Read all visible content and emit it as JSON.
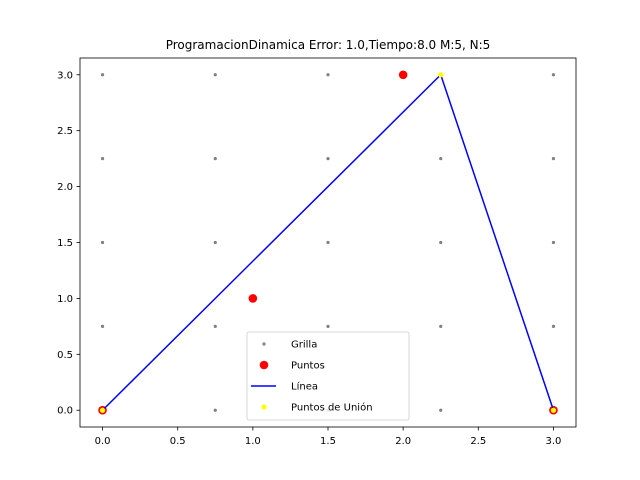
{
  "chart_data": {
    "type": "scatter",
    "title": "ProgramacionDinamica Error: 1.0,Tiempo:8.0  M:5, N:5",
    "xlabel": "",
    "ylabel": "",
    "xlim": [
      -0.15,
      3.15
    ],
    "ylim": [
      -0.15,
      3.15
    ],
    "x_ticks": [
      0.0,
      0.5,
      1.0,
      1.5,
      2.0,
      2.5,
      3.0
    ],
    "y_ticks": [
      0.0,
      0.5,
      1.0,
      1.5,
      2.0,
      2.5,
      3.0
    ],
    "x_tick_labels": [
      "0.0",
      "0.5",
      "1.0",
      "1.5",
      "2.0",
      "2.5",
      "3.0"
    ],
    "y_tick_labels": [
      "0.0",
      "0.5",
      "1.0",
      "1.5",
      "2.0",
      "2.5",
      "3.0"
    ],
    "grid": false,
    "legend_placement": "lower center",
    "series": [
      {
        "name": "Grilla",
        "kind": "scatter",
        "color": "#808080",
        "x": [
          0,
          0.75,
          1.5,
          2.25,
          3,
          0,
          0.75,
          1.5,
          2.25,
          3,
          0,
          0.75,
          1.5,
          2.25,
          3,
          0,
          0.75,
          1.5,
          2.25,
          3,
          0,
          0.75,
          1.5,
          2.25,
          3
        ],
        "y": [
          0,
          0,
          0,
          0,
          0,
          0.75,
          0.75,
          0.75,
          0.75,
          0.75,
          1.5,
          1.5,
          1.5,
          1.5,
          1.5,
          2.25,
          2.25,
          2.25,
          2.25,
          2.25,
          3,
          3,
          3,
          3,
          3
        ]
      },
      {
        "name": "Puntos",
        "kind": "scatter",
        "color": "#ff0000",
        "x": [
          0,
          1,
          2,
          3
        ],
        "y": [
          0,
          1,
          3,
          0
        ]
      },
      {
        "name": "Línea",
        "kind": "line",
        "color": "#0000ff",
        "x": [
          0,
          2.25,
          3
        ],
        "y": [
          0,
          3,
          0
        ]
      },
      {
        "name": "Puntos de Unión",
        "kind": "scatter",
        "color": "#ffff00",
        "x": [
          0,
          2.25,
          3
        ],
        "y": [
          0,
          3,
          0
        ]
      }
    ]
  }
}
